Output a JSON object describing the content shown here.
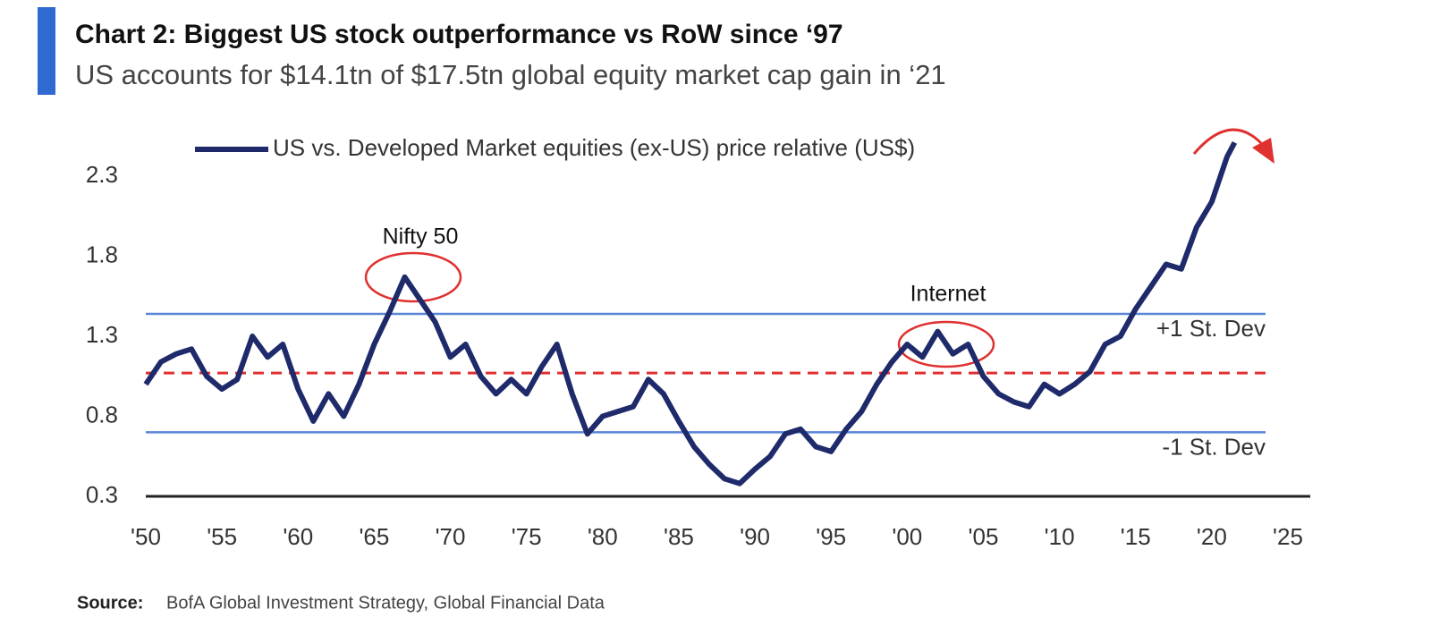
{
  "chart_data": {
    "type": "line",
    "title": "Chart 2: Biggest US stock outperformance vs RoW since ‘97",
    "subtitle": "US accounts for $14.1tn of $17.5tn global equity market cap gain in ‘21",
    "x": [
      1950,
      1951,
      1952,
      1953,
      1954,
      1955,
      1956,
      1957,
      1958,
      1959,
      1960,
      1961,
      1962,
      1963,
      1964,
      1965,
      1966,
      1967,
      1968,
      1969,
      1970,
      1971,
      1972,
      1973,
      1974,
      1975,
      1976,
      1977,
      1978,
      1979,
      1980,
      1981,
      1982,
      1983,
      1984,
      1985,
      1986,
      1987,
      1988,
      1989,
      1990,
      1991,
      1992,
      1993,
      1994,
      1995,
      1996,
      1997,
      1998,
      1999,
      2000,
      2001,
      2002,
      2003,
      2004,
      2005,
      2006,
      2007,
      2008,
      2009,
      2010,
      2011,
      2012,
      2013,
      2014,
      2015,
      2016,
      2017,
      2018,
      2019,
      2020,
      2021,
      2021.5
    ],
    "series": [
      {
        "name": "US vs. Developed Market equities (ex-US) price relative (US$)",
        "color": "#1f2a6b",
        "values": [
          1.0,
          1.14,
          1.19,
          1.22,
          1.05,
          0.97,
          1.03,
          1.3,
          1.17,
          1.25,
          0.97,
          0.77,
          0.94,
          0.8,
          1.0,
          1.25,
          1.45,
          1.67,
          1.53,
          1.39,
          1.17,
          1.25,
          1.05,
          0.94,
          1.03,
          0.94,
          1.11,
          1.25,
          0.94,
          0.69,
          0.8,
          0.83,
          0.86,
          1.03,
          0.94,
          0.77,
          0.61,
          0.5,
          0.41,
          0.38,
          0.47,
          0.55,
          0.69,
          0.72,
          0.61,
          0.58,
          0.72,
          0.83,
          1.0,
          1.14,
          1.25,
          1.17,
          1.33,
          1.19,
          1.25,
          1.05,
          0.94,
          0.89,
          0.86,
          1.0,
          0.94,
          1.0,
          1.08,
          1.25,
          1.3,
          1.47,
          1.61,
          1.75,
          1.72,
          1.98,
          2.14,
          2.42,
          2.51
        ]
      }
    ],
    "xlim": [
      1950,
      2025
    ],
    "xticks": [
      {
        "value": 1950,
        "label": "'50"
      },
      {
        "value": 1955,
        "label": "'55"
      },
      {
        "value": 1960,
        "label": "'60"
      },
      {
        "value": 1965,
        "label": "'65"
      },
      {
        "value": 1970,
        "label": "'70"
      },
      {
        "value": 1975,
        "label": "'75"
      },
      {
        "value": 1980,
        "label": "'80"
      },
      {
        "value": 1985,
        "label": "'85"
      },
      {
        "value": 1990,
        "label": "'90"
      },
      {
        "value": 1995,
        "label": "'95"
      },
      {
        "value": 2000,
        "label": "'00"
      },
      {
        "value": 2005,
        "label": "'05"
      },
      {
        "value": 2010,
        "label": "'10"
      },
      {
        "value": 2015,
        "label": "'15"
      },
      {
        "value": 2020,
        "label": "'20"
      },
      {
        "value": 2025,
        "label": "'25"
      }
    ],
    "ylim": [
      0.3,
      2.6
    ],
    "yticks": [
      0.3,
      0.8,
      1.3,
      1.8,
      2.3
    ],
    "reference_lines": [
      {
        "value": 1.44,
        "label": "+1 St. Dev",
        "color": "#5b85d6",
        "style": "solid"
      },
      {
        "value": 1.07,
        "color": "#e03030",
        "style": "dashed"
      },
      {
        "value": 0.7,
        "label": "-1 St. Dev",
        "color": "#5b85d6",
        "style": "solid"
      }
    ],
    "annotations": [
      "Nifty 50",
      "Internet"
    ],
    "source_label": "Source:",
    "source": "BofA Global Investment Strategy, Global Financial Data"
  }
}
